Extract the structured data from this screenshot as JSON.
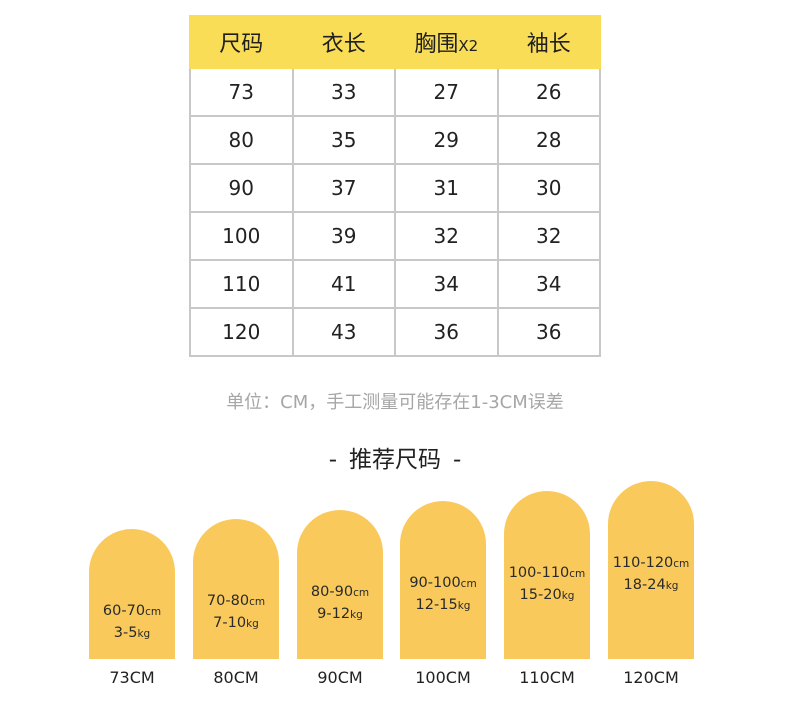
{
  "size_table": {
    "headers": [
      {
        "label": "尺码",
        "suffix": ""
      },
      {
        "label": "衣长",
        "suffix": ""
      },
      {
        "label": "胸围",
        "suffix": "X2"
      },
      {
        "label": "袖长",
        "suffix": ""
      }
    ],
    "rows": [
      [
        "73",
        "33",
        "27",
        "26"
      ],
      [
        "80",
        "35",
        "29",
        "28"
      ],
      [
        "90",
        "37",
        "31",
        "30"
      ],
      [
        "100",
        "39",
        "32",
        "32"
      ],
      [
        "110",
        "41",
        "34",
        "34"
      ],
      [
        "120",
        "43",
        "36",
        "36"
      ]
    ]
  },
  "unit_note": "单位：CM，手工测量可能存在1-3CM误差",
  "recommendation": {
    "title": "推荐尺码",
    "dash": "-",
    "height_unit": "cm",
    "weight_unit": "kg",
    "items": [
      {
        "height": "60-70",
        "weight": "3-5",
        "size": "73CM"
      },
      {
        "height": "70-80",
        "weight": "7-10",
        "size": "80CM"
      },
      {
        "height": "80-90",
        "weight": "9-12",
        "size": "90CM"
      },
      {
        "height": "90-100",
        "weight": "12-15",
        "size": "100CM"
      },
      {
        "height": "100-110",
        "weight": "15-20",
        "size": "110CM"
      },
      {
        "height": "110-120",
        "weight": "18-24",
        "size": "120CM"
      }
    ]
  },
  "colors": {
    "header_yellow": "#f9dd57",
    "bar_yellow": "#f9ca5b",
    "grid": "#c8c8c8",
    "note_gray": "#a6a6a6"
  }
}
